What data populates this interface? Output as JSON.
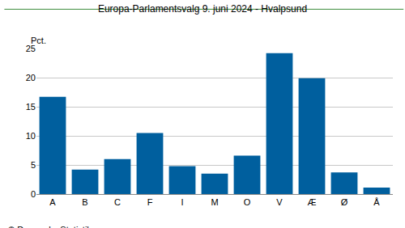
{
  "chart_data": {
    "type": "bar",
    "title": "Europa-Parlamentsvalg 9. juni 2024 - Hvalpsund",
    "ylabel": "Pct.",
    "annotations": [
      "© Danmarks Statistik"
    ],
    "categories": [
      "A",
      "B",
      "C",
      "F",
      "I",
      "M",
      "O",
      "V",
      "Æ",
      "Ø",
      "Å"
    ],
    "values": [
      16.7,
      4.2,
      6.0,
      10.5,
      4.8,
      3.5,
      6.6,
      24.2,
      19.9,
      3.7,
      1.1
    ],
    "color": "#005f9e",
    "ylim": [
      0,
      25
    ],
    "yticks": [
      0,
      5,
      10,
      15,
      20,
      25
    ],
    "grid": true
  }
}
